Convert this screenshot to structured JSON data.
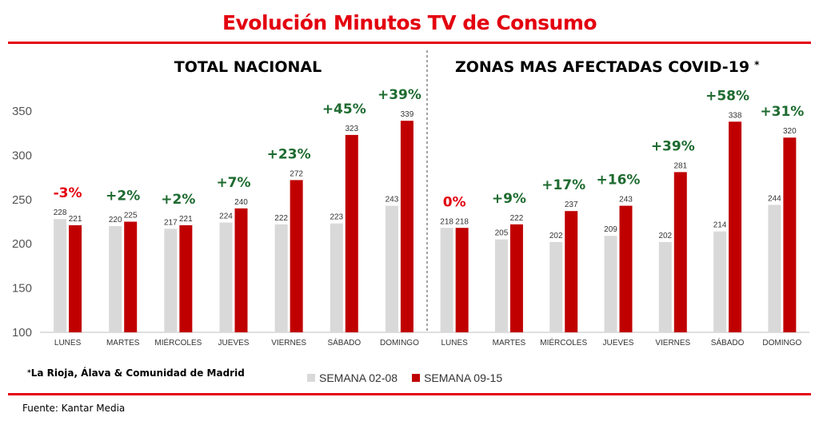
{
  "title": "Evolución Minutos TV de Consumo",
  "colors": {
    "title": "#e3000f",
    "series_a": "#d9d9d9",
    "series_b": "#c00000",
    "pct_up": "#1e6b30",
    "pct_flat": "#e3000f"
  },
  "footnote": {
    "bullet": "*",
    "text": "La Rioja, Álava & Comunidad de Madrid"
  },
  "source": "Fuente: Kantar Media",
  "chart_data": [
    {
      "type": "bar",
      "title": "TOTAL NACIONAL",
      "title_mark": "",
      "categories": [
        "LUNES",
        "MARTES",
        "MIÉRCOLES",
        "JUEVES",
        "VIERNES",
        "SÁBADO",
        "DOMINGO"
      ],
      "series": [
        {
          "name": "SEMANA 02-08",
          "values": [
            228,
            220,
            217,
            224,
            222,
            223,
            243
          ]
        },
        {
          "name": "SEMANA 09-15",
          "values": [
            221,
            225,
            221,
            240,
            272,
            323,
            339
          ]
        }
      ],
      "changes": [
        "-3%",
        "+2%",
        "+2%",
        "+7%",
        "+23%",
        "+45%",
        "+39%"
      ],
      "ylim": [
        100,
        350
      ],
      "yticks": [
        100,
        150,
        200,
        250,
        300,
        350
      ],
      "grid": false,
      "legend": "bottom"
    },
    {
      "type": "bar",
      "title": "ZONAS MAS AFECTADAS COVID-19",
      "title_mark": "*",
      "categories": [
        "LUNES",
        "MARTES",
        "MIÉRCOLES",
        "JUEVES",
        "VIERNES",
        "SÁBADO",
        "DOMINGO"
      ],
      "series": [
        {
          "name": "SEMANA 02-08",
          "values": [
            218,
            205,
            202,
            209,
            202,
            214,
            244
          ]
        },
        {
          "name": "SEMANA 09-15",
          "values": [
            218,
            222,
            237,
            243,
            281,
            338,
            320
          ]
        }
      ],
      "changes": [
        "0%",
        "+9%",
        "+17%",
        "+16%",
        "+39%",
        "+58%",
        "+31%"
      ],
      "ylim": [
        100,
        350
      ],
      "grid": false,
      "legend": "bottom"
    }
  ]
}
